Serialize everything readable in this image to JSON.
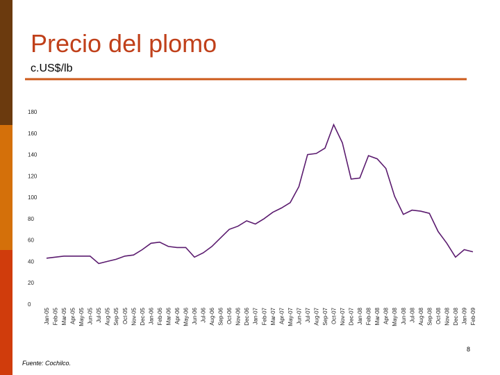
{
  "chart_data": {
    "type": "line",
    "title": "Precio del plomo",
    "subtitle": "c.US$/lb",
    "categories": [
      "Jan-05",
      "Feb-05",
      "Mar-05",
      "Apr-05",
      "May-05",
      "Jun-05",
      "Jul-05",
      "Aug-05",
      "Sep-05",
      "Oct-05",
      "Nov-05",
      "Dec-05",
      "Jan-06",
      "Feb-06",
      "Mar-06",
      "Apr-06",
      "May-06",
      "Jun-06",
      "Jul-06",
      "Aug-06",
      "Sep-06",
      "Oct-06",
      "Nov-06",
      "Dec-06",
      "Jan-07",
      "Feb-07",
      "Mar-07",
      "Apr-07",
      "May-07",
      "Jun-07",
      "Jul-07",
      "Aug-07",
      "Sep-07",
      "Oct-07",
      "Nov-07",
      "Dec-07",
      "Jan-08",
      "Feb-08",
      "Mar-08",
      "Apr-08",
      "May-08",
      "Jun-08",
      "Jul-08",
      "Aug-08",
      "Sep-08",
      "Oct-08",
      "Nov-08",
      "Dec-08",
      "Jan-09",
      "Feb-09"
    ],
    "values": [
      43,
      44,
      45,
      45,
      45,
      45,
      38,
      40,
      42,
      45,
      46,
      51,
      57,
      58,
      54,
      53,
      53,
      44,
      48,
      54,
      62,
      70,
      73,
      78,
      75,
      80,
      86,
      90,
      95,
      110,
      140,
      141,
      146,
      168,
      151,
      117,
      118,
      139,
      136,
      127,
      101,
      84,
      88,
      87,
      85,
      68,
      57,
      44,
      51,
      49
    ],
    "color": "#5a1a6e",
    "ylim": [
      0,
      180
    ],
    "yticks": [
      0,
      20,
      40,
      60,
      80,
      100,
      120,
      140,
      160,
      180
    ]
  },
  "page_number": "8",
  "source": "Fuente: Cochilco."
}
